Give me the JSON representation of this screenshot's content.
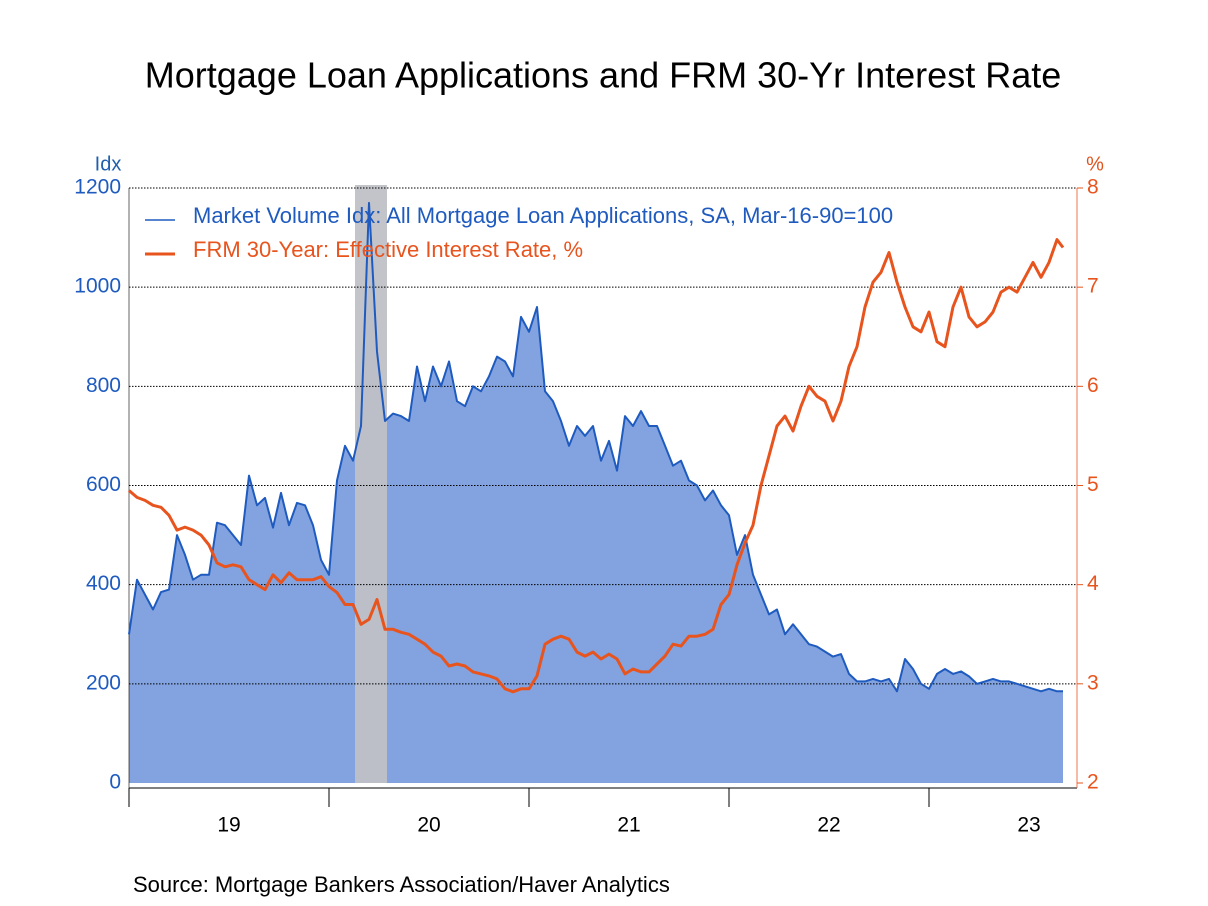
{
  "chart_data": {
    "type": "line",
    "title": "Mortgage Loan Applications and FRM 30-Yr Interest Rate",
    "source": "Source:  Mortgage Bankers Association/Haver Analytics",
    "y_label": "Idx",
    "y2_label": "%",
    "x": [
      19.0,
      19.04,
      19.08,
      19.12,
      19.16,
      19.2,
      19.24,
      19.28,
      19.32,
      19.36,
      19.4,
      19.44,
      19.48,
      19.52,
      19.56,
      19.6,
      19.64,
      19.68,
      19.72,
      19.76,
      19.8,
      19.84,
      19.88,
      19.92,
      19.96,
      20.0,
      20.04,
      20.08,
      20.12,
      20.16,
      20.2,
      20.24,
      20.28,
      20.32,
      20.36,
      20.4,
      20.44,
      20.48,
      20.52,
      20.56,
      20.6,
      20.64,
      20.68,
      20.72,
      20.76,
      20.8,
      20.84,
      20.88,
      20.92,
      20.96,
      21.0,
      21.04,
      21.08,
      21.12,
      21.16,
      21.2,
      21.24,
      21.28,
      21.32,
      21.36,
      21.4,
      21.44,
      21.48,
      21.52,
      21.56,
      21.6,
      21.64,
      21.68,
      21.72,
      21.76,
      21.8,
      21.84,
      21.88,
      21.92,
      21.96,
      22.0,
      22.04,
      22.08,
      22.12,
      22.16,
      22.2,
      22.24,
      22.28,
      22.32,
      22.36,
      22.4,
      22.44,
      22.48,
      22.52,
      22.56,
      22.6,
      22.64,
      22.68,
      22.72,
      22.76,
      22.8,
      22.84,
      22.88,
      22.92,
      22.96,
      23.0,
      23.04,
      23.08,
      23.12,
      23.16,
      23.2,
      23.24,
      23.28,
      23.32,
      23.36,
      23.4,
      23.44,
      23.48,
      23.52,
      23.56,
      23.6,
      23.64,
      23.67
    ],
    "series": [
      {
        "name": "Market Volume Idx: All Mortgage Loan Applications, SA, Mar-16-90=100",
        "color": "#1f5bbf",
        "fill": "#82a3e0",
        "area": true,
        "values": [
          300,
          410,
          380,
          350,
          385,
          390,
          500,
          460,
          410,
          420,
          420,
          525,
          520,
          500,
          480,
          620,
          560,
          575,
          515,
          585,
          520,
          565,
          560,
          520,
          450,
          420,
          610,
          680,
          650,
          720,
          1170,
          870,
          730,
          745,
          740,
          730,
          840,
          770,
          840,
          800,
          850,
          770,
          760,
          800,
          790,
          820,
          860,
          850,
          820,
          940,
          910,
          960,
          790,
          770,
          730,
          680,
          720,
          700,
          720,
          650,
          690,
          630,
          740,
          720,
          750,
          720,
          720,
          680,
          640,
          650,
          610,
          600,
          570,
          590,
          560,
          540,
          460,
          500,
          420,
          380,
          340,
          350,
          300,
          320,
          300,
          280,
          275,
          265,
          255,
          260,
          220,
          205,
          205,
          210,
          205,
          210,
          185,
          250,
          230,
          200,
          190,
          220,
          230,
          220,
          225,
          215,
          200,
          205,
          210,
          205,
          205,
          200,
          195,
          190,
          185,
          190,
          185,
          185
        ]
      },
      {
        "name": "FRM 30-Year: Effective Interest Rate, %",
        "color": "#e8541e",
        "axis": "y2",
        "values": [
          4.95,
          4.88,
          4.85,
          4.8,
          4.78,
          4.7,
          4.55,
          4.58,
          4.55,
          4.5,
          4.4,
          4.22,
          4.18,
          4.2,
          4.18,
          4.05,
          4.0,
          3.95,
          4.1,
          4.02,
          4.12,
          4.05,
          4.05,
          4.05,
          4.08,
          3.98,
          3.92,
          3.8,
          3.8,
          3.6,
          3.65,
          3.85,
          3.55,
          3.55,
          3.52,
          3.5,
          3.45,
          3.4,
          3.32,
          3.28,
          3.18,
          3.2,
          3.18,
          3.12,
          3.1,
          3.08,
          3.05,
          2.95,
          2.92,
          2.95,
          2.95,
          3.08,
          3.4,
          3.45,
          3.48,
          3.45,
          3.32,
          3.28,
          3.32,
          3.25,
          3.3,
          3.25,
          3.1,
          3.15,
          3.12,
          3.12,
          3.2,
          3.28,
          3.4,
          3.38,
          3.48,
          3.48,
          3.5,
          3.55,
          3.8,
          3.9,
          4.2,
          4.42,
          4.6,
          5.0,
          5.3,
          5.6,
          5.7,
          5.55,
          5.8,
          6.0,
          5.9,
          5.85,
          5.65,
          5.85,
          6.2,
          6.4,
          6.8,
          7.05,
          7.15,
          7.35,
          7.05,
          6.8,
          6.6,
          6.55,
          6.75,
          6.45,
          6.4,
          6.8,
          7.0,
          6.7,
          6.6,
          6.65,
          6.75,
          6.95,
          7.0,
          6.95,
          7.1,
          7.25,
          7.1,
          7.25,
          7.48,
          7.4
        ]
      }
    ],
    "recession": [
      20.13,
      20.29
    ],
    "xlim": [
      19,
      23.74
    ],
    "xticks": [
      19,
      20,
      21,
      22,
      23
    ],
    "ylim": [
      0,
      1200
    ],
    "yticks": [
      0,
      200,
      400,
      600,
      800,
      1000,
      1200
    ],
    "y2lim": [
      2,
      8
    ],
    "y2ticks": [
      2,
      3,
      4,
      5,
      6,
      7,
      8
    ],
    "grid": true,
    "legend": "top-left"
  }
}
